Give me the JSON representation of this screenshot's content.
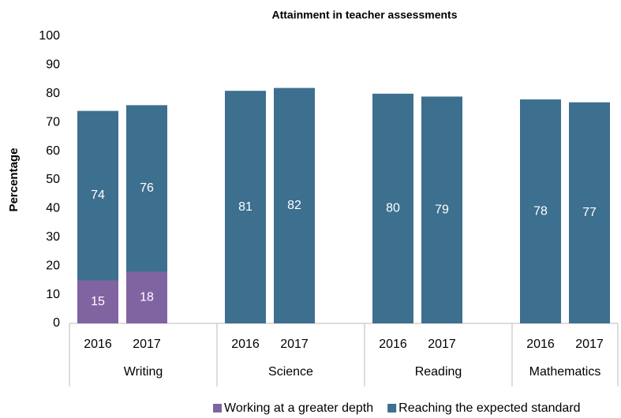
{
  "chart_data": {
    "type": "bar",
    "title": "Attainment in teacher assessments",
    "y_label": "Percentage",
    "categories": [
      "2016",
      "2017",
      "2016",
      "2017",
      "2016",
      "2017",
      "2016",
      "2017"
    ],
    "groups": [
      "Writing",
      "Science",
      "Reading",
      "Mathematics"
    ],
    "series": [
      {
        "name": "Reaching the expected standard",
        "color": "#3d6f8f",
        "values": [
          74,
          76,
          81,
          82,
          80,
          79,
          78,
          77
        ]
      },
      {
        "name": "Working at a greater depth",
        "color": "#8064a2",
        "values": [
          15,
          18,
          null,
          null,
          null,
          null,
          null,
          null
        ]
      }
    ],
    "legend_order": [
      1,
      0
    ],
    "ylim": [
      0,
      100
    ],
    "yticks": [
      0,
      10,
      20,
      30,
      40,
      50,
      60,
      70,
      80,
      90,
      100
    ],
    "grid": false,
    "overlap": true
  }
}
